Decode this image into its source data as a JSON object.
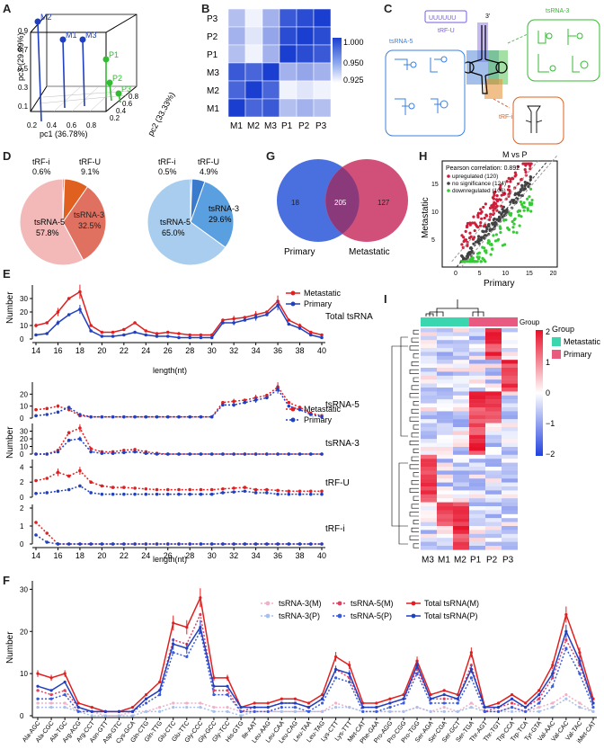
{
  "panel_labels": {
    "A": "A",
    "B": "B",
    "C": "C",
    "D": "D",
    "E": "E",
    "F": "F",
    "G": "G",
    "H": "H",
    "I": "I"
  },
  "colors": {
    "metastatic": "#e02020",
    "primary": "#2040c0",
    "green": "#33bb33",
    "pink_light": "#f3b8b8",
    "salmon": "#e07060",
    "orange": "#e06020",
    "blue_light": "#a8cdee",
    "blue_mid": "#5aa0e0",
    "venn_blue": "#4a70e0",
    "venn_pink": "#d0507a",
    "venn_overlap": "#8a3a7a",
    "heat_high": "#e8102a",
    "heat_low": "#2040e0",
    "teal": "#3ad6b0",
    "group_pink": "#e85a80"
  },
  "panel_A": {
    "axis_x": "pc1 (36.78%)",
    "axis_y": "pc2 (33.33%)",
    "axis_z": "pc3 (29.89%)",
    "x_ticks": [
      "0.2",
      "0.4",
      "0.6",
      "0.8"
    ],
    "y_ticks": [
      "0.2",
      "0.4",
      "0.6",
      "0.8"
    ],
    "z_ticks": [
      "0.1",
      "0.3",
      "0.5",
      "0.7",
      "0.9"
    ],
    "points": [
      {
        "label": "M2",
        "group": "M"
      },
      {
        "label": "M1",
        "group": "M"
      },
      {
        "label": "M3",
        "group": "M"
      },
      {
        "label": "P1",
        "group": "P"
      },
      {
        "label": "P2",
        "group": "P"
      },
      {
        "label": "P3",
        "group": "P"
      }
    ]
  },
  "panel_B": {
    "rows": [
      "P3",
      "P2",
      "P1",
      "M3",
      "M2",
      "M1"
    ],
    "cols": [
      "M1",
      "M2",
      "M3",
      "P1",
      "P2",
      "P3"
    ],
    "values": [
      [
        0.95,
        0.93,
        0.955,
        0.99,
        0.995,
        1.0
      ],
      [
        0.955,
        0.935,
        0.96,
        0.995,
        1.0,
        0.995
      ],
      [
        0.95,
        0.93,
        0.955,
        1.0,
        0.995,
        0.99
      ],
      [
        0.99,
        0.985,
        1.0,
        0.955,
        0.96,
        0.955
      ],
      [
        0.985,
        1.0,
        0.985,
        0.93,
        0.935,
        0.93
      ],
      [
        1.0,
        0.985,
        0.99,
        0.95,
        0.955,
        0.95
      ]
    ],
    "legend": [
      "1.000",
      "0.950",
      "0.925"
    ]
  },
  "panel_C": {
    "tsRNA5": "tsRNA-5",
    "tsRNA3": "tsRNA-3",
    "tRFU": "tRF-U",
    "tRFi": "tRF-i",
    "uuuu": "UUUUUU",
    "three": "3'"
  },
  "panel_D": {
    "pie1": [
      {
        "name": "tRF-i",
        "pct": "0.6%",
        "value": 0.6
      },
      {
        "name": "tRF-U",
        "pct": "9.1%",
        "value": 9.1
      },
      {
        "name": "tsRNA-3",
        "pct": "32.5%",
        "value": 32.5
      },
      {
        "name": "tsRNA-5",
        "pct": "57.8%",
        "value": 57.8
      }
    ],
    "pie2": [
      {
        "name": "tRF-i",
        "pct": "0.5%",
        "value": 0.5
      },
      {
        "name": "tRF-U",
        "pct": "4.9%",
        "value": 4.9
      },
      {
        "name": "tsRNA-3",
        "pct": "29.6%",
        "value": 29.6
      },
      {
        "name": "tsRNA-5",
        "pct": "65.0%",
        "value": 65.0
      }
    ]
  },
  "panel_G": {
    "left_only": "18",
    "overlap": "205",
    "right_only": "127",
    "left_label": "Primary",
    "right_label": "Metastatic"
  },
  "panel_H": {
    "title": "M vs P",
    "xlabel": "Primary",
    "ylabel": "Metastatic",
    "pearson": "Pearson correlation: 0.892",
    "legend": [
      {
        "label": "upregulated (120)",
        "color": "#cc1f3a"
      },
      {
        "label": "no significance (124)",
        "color": "#444444"
      },
      {
        "label": "downregulated (106)",
        "color": "#33cc33"
      }
    ],
    "x_ticks": [
      "0",
      "5",
      "10",
      "15",
      "20"
    ],
    "y_ticks": [
      "5",
      "10",
      "15"
    ],
    "chart_data": {
      "type": "scatter",
      "xlim": [
        -3,
        21
      ],
      "ylim": [
        0,
        19
      ],
      "series": [
        {
          "name": "upregulated",
          "count": 120
        },
        {
          "name": "no significance",
          "count": 124
        },
        {
          "name": "downregulated",
          "count": 106
        }
      ]
    }
  },
  "panel_E": {
    "xlabel": "length(nt)",
    "ylabel": "Number",
    "legend_m": "Metastatic",
    "legend_p": "Primary",
    "lengths": [
      14,
      15,
      16,
      17,
      18,
      19,
      20,
      21,
      22,
      23,
      24,
      25,
      26,
      27,
      28,
      29,
      30,
      31,
      32,
      33,
      34,
      35,
      36,
      37,
      38,
      39,
      40
    ],
    "x_ticks": [
      "14",
      "16",
      "18",
      "20",
      "22",
      "24",
      "26",
      "28",
      "30",
      "32",
      "34",
      "36",
      "38",
      "40"
    ],
    "subplots": [
      {
        "name": "Total tsRNA",
        "yticks": [
          "0",
          "10",
          "20",
          "30"
        ],
        "ymax": 40,
        "m": [
          10,
          12,
          20,
          30,
          35,
          10,
          5,
          5,
          7,
          12,
          6,
          4,
          5,
          4,
          3,
          3,
          3,
          14,
          15,
          16,
          18,
          20,
          28,
          14,
          10,
          5,
          3
        ],
        "p": [
          3,
          4,
          12,
          18,
          22,
          6,
          2,
          2,
          3,
          5,
          3,
          2,
          2,
          1,
          1,
          1,
          1,
          12,
          12,
          14,
          16,
          18,
          25,
          11,
          8,
          3,
          1
        ]
      },
      {
        "name": "tsRNA-5",
        "yticks": [
          "0",
          "10",
          "20"
        ],
        "ymax": 30,
        "m": [
          7,
          8,
          10,
          7,
          2,
          1,
          1,
          1,
          1,
          1,
          1,
          1,
          1,
          1,
          1,
          1,
          1,
          13,
          14,
          15,
          17,
          19,
          26,
          13,
          9,
          4,
          2
        ],
        "p": [
          2,
          3,
          5,
          9,
          3,
          1,
          1,
          1,
          1,
          1,
          1,
          1,
          1,
          1,
          1,
          1,
          1,
          11,
          11,
          13,
          15,
          17,
          24,
          10,
          7,
          3,
          1
        ]
      },
      {
        "name": "tsRNA-3",
        "yticks": [
          "0",
          "10",
          "20",
          "30"
        ],
        "ymax": 40,
        "m": [
          0,
          0,
          5,
          28,
          34,
          7,
          3,
          3,
          5,
          6,
          3,
          1,
          0,
          0,
          0,
          0,
          0,
          0,
          0,
          0,
          0,
          0,
          0,
          0,
          0,
          0,
          0
        ],
        "p": [
          0,
          0,
          3,
          18,
          20,
          3,
          1,
          1,
          2,
          3,
          1,
          0,
          0,
          0,
          0,
          0,
          0,
          0,
          0,
          0,
          0,
          0,
          0,
          0,
          0,
          0,
          0
        ]
      },
      {
        "name": "tRF-U",
        "yticks": [
          "0",
          "2",
          "4"
        ],
        "ymax": 5,
        "m": [
          2.2,
          2.5,
          3.3,
          2.8,
          3.5,
          2.0,
          1.5,
          1.3,
          1.3,
          1.2,
          1.1,
          1.0,
          1.0,
          1.0,
          1.0,
          1.0,
          1.0,
          1.1,
          1.2,
          1.3,
          1.0,
          1.0,
          0.9,
          0.8,
          0.8,
          0.8,
          0.8
        ],
        "p": [
          0.5,
          0.6,
          0.8,
          1.0,
          1.5,
          0.6,
          0.4,
          0.4,
          0.4,
          0.4,
          0.4,
          0.4,
          0.4,
          0.4,
          0.4,
          0.4,
          0.4,
          0.6,
          0.7,
          0.8,
          0.6,
          0.6,
          0.4,
          0.4,
          0.4,
          0.4,
          0.4
        ]
      },
      {
        "name": "tRF-i",
        "yticks": [
          "0",
          "1",
          "2"
        ],
        "ymax": 2.2,
        "m": [
          1.2,
          0.6,
          0,
          0,
          0,
          0,
          0,
          0,
          0,
          0,
          0,
          0,
          0,
          0,
          0,
          0,
          0,
          0,
          0,
          0,
          0,
          0,
          0,
          0,
          0,
          0,
          0
        ],
        "p": [
          0.5,
          0.1,
          0,
          0,
          0,
          0,
          0,
          0,
          0,
          0,
          0,
          0,
          0,
          0,
          0,
          0,
          0,
          0,
          0,
          0,
          0,
          0,
          0,
          0,
          0,
          0,
          0
        ]
      }
    ]
  },
  "panel_F": {
    "ylabel": "Number",
    "yticks": [
      "0",
      "10",
      "20",
      "30"
    ],
    "ymax": 32,
    "legend": [
      "tsRNA-3(M)",
      "tsRNA-3(P)",
      "tsRNA-5(M)",
      "tsRNA-5(P)",
      "Total tsRNA(M)",
      "Total tsRNA(P)"
    ],
    "categories": [
      "Ala-AGC",
      "Ala-CGC",
      "Ala-TGC",
      "Arg-ACG",
      "Arg-CCT",
      "Asn-GTT",
      "Asp-GTC",
      "Cys-GCA",
      "Gln-CTG",
      "Gln-TTG",
      "Glu-CTC",
      "Glu-TTC",
      "Gly-CCC",
      "Gly-GCC",
      "Gly-TCC",
      "His-GTG",
      "Ile-AAT",
      "Leu-AAG",
      "Leu-CAA",
      "Leu-CAG",
      "Leu-TAA",
      "Leu-TAG",
      "Lys-CTT",
      "Lys-TTT",
      "Met-CAT",
      "Phe-GAA",
      "Pro-AGG",
      "Pro-CGG",
      "Pro-TGG",
      "Ser-AGA",
      "Ser-CGA",
      "Ser-GCT",
      "Ser-TGA",
      "Thr-AGT",
      "Thr-TGT",
      "Trp-CCA",
      "Trp-TCA",
      "Tyr-GTA",
      "Val-AAC",
      "Val-CAC",
      "Val-TAC",
      "iMet-CAT"
    ],
    "chart_data": {
      "type": "line",
      "total_m": [
        10,
        9,
        10,
        3,
        2,
        1,
        1,
        2,
        5,
        8,
        22,
        21,
        28,
        9,
        9,
        2,
        3,
        3,
        4,
        4,
        3,
        5,
        14,
        12,
        3,
        3,
        4,
        5,
        13,
        5,
        6,
        5,
        15,
        2,
        3,
        5,
        3,
        6,
        12,
        24,
        15,
        4
      ],
      "total_p": [
        7,
        6,
        8,
        2,
        1,
        1,
        1,
        1,
        4,
        6,
        17,
        16,
        21,
        7,
        7,
        2,
        2,
        2,
        3,
        3,
        2,
        4,
        11,
        10,
        2,
        2,
        3,
        4,
        12,
        4,
        5,
        4,
        11,
        2,
        2,
        4,
        2,
        5,
        10,
        20,
        13,
        3
      ],
      "ts5_m": [
        6,
        5,
        6,
        2,
        1,
        1,
        1,
        1,
        4,
        6,
        18,
        17,
        24,
        6,
        6,
        1,
        2,
        2,
        3,
        3,
        2,
        4,
        11,
        9,
        2,
        2,
        3,
        4,
        11,
        4,
        4,
        4,
        12,
        1,
        2,
        3,
        2,
        4,
        9,
        18,
        12,
        3
      ],
      "ts5_p": [
        4,
        4,
        5,
        1,
        1,
        1,
        1,
        1,
        3,
        5,
        15,
        14,
        20,
        5,
        5,
        1,
        1,
        1,
        2,
        2,
        1,
        3,
        9,
        8,
        1,
        1,
        2,
        3,
        10,
        3,
        3,
        3,
        9,
        1,
        1,
        2,
        1,
        3,
        7,
        16,
        10,
        2
      ],
      "ts3_m": [
        3,
        3,
        3,
        1,
        1,
        0,
        0,
        1,
        1,
        2,
        3,
        3,
        3,
        2,
        2,
        1,
        1,
        1,
        1,
        1,
        1,
        1,
        3,
        2,
        1,
        1,
        1,
        1,
        2,
        1,
        2,
        1,
        3,
        1,
        1,
        2,
        1,
        2,
        3,
        5,
        3,
        1
      ],
      "ts3_p": [
        2,
        2,
        2,
        1,
        0,
        0,
        0,
        0,
        1,
        1,
        2,
        2,
        2,
        1,
        1,
        0,
        1,
        1,
        1,
        1,
        1,
        1,
        2,
        2,
        1,
        1,
        1,
        1,
        2,
        1,
        1,
        1,
        2,
        1,
        1,
        1,
        1,
        1,
        2,
        4,
        2,
        1
      ]
    }
  },
  "panel_I": {
    "legend_title": "Group",
    "legend_items": [
      "Metastatic",
      "Primary"
    ],
    "scale": [
      "2",
      "1",
      "0",
      "−1",
      "−2"
    ],
    "cols": [
      "M3",
      "M1",
      "M2",
      "P1",
      "P2",
      "P3"
    ]
  }
}
